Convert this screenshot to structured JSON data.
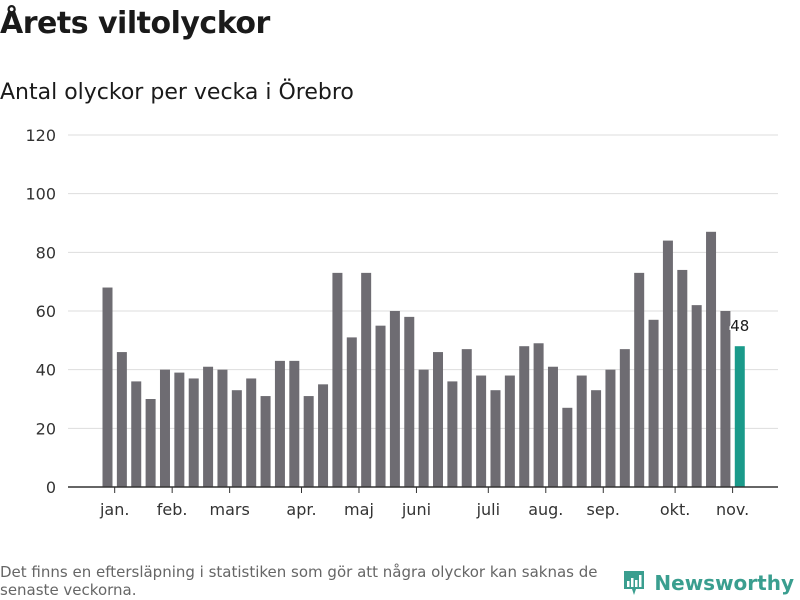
{
  "header": {
    "title": "Årets viltolyckor",
    "subtitle": "Antal olyckor per vecka i Örebro"
  },
  "footer": {
    "note": "Det finns en eftersläpning i statistiken som gör att några olyckor kan saknas de senaste veckorna.",
    "brand": "Newsworthy",
    "brand_icon": "newsworthy-logo-icon"
  },
  "colors": {
    "bar": "#6e6c72",
    "highlight": "#1a9a8a",
    "grid": "#dddddd",
    "axis": "#333333",
    "brand": "#3a9e8f"
  },
  "chart_data": {
    "type": "bar",
    "title": "Årets viltolyckor",
    "subtitle": "Antal olyckor per vecka i Örebro",
    "xlabel": "",
    "ylabel": "",
    "ylim": [
      0,
      120
    ],
    "yticks": [
      0,
      20,
      40,
      60,
      80,
      100,
      120
    ],
    "grid": true,
    "legend": "none",
    "x": [
      1,
      2,
      3,
      4,
      5,
      6,
      7,
      8,
      9,
      10,
      11,
      12,
      13,
      14,
      15,
      16,
      17,
      18,
      19,
      20,
      21,
      22,
      23,
      24,
      25,
      26,
      27,
      28,
      29,
      30,
      31,
      32,
      33,
      34,
      35,
      36,
      37,
      38,
      39,
      40,
      41,
      42,
      43,
      44
    ],
    "values": [
      68,
      46,
      36,
      30,
      40,
      39,
      37,
      41,
      40,
      33,
      37,
      31,
      43,
      43,
      31,
      35,
      73,
      51,
      73,
      55,
      60,
      58,
      40,
      46,
      36,
      47,
      38,
      33,
      38,
      48,
      49,
      41,
      27,
      38,
      33,
      40,
      47,
      73,
      57,
      84,
      74,
      62,
      87,
      60
    ],
    "highlight": {
      "x": 45,
      "value": 48,
      "label": "48"
    },
    "month_labels": [
      {
        "label": "jan.",
        "week": 1.5
      },
      {
        "label": "feb.",
        "week": 5.5
      },
      {
        "label": "mars",
        "week": 9.5
      },
      {
        "label": "apr.",
        "week": 14.5
      },
      {
        "label": "maj",
        "week": 18.5
      },
      {
        "label": "juni",
        "week": 22.5
      },
      {
        "label": "juli",
        "week": 27.5
      },
      {
        "label": "aug.",
        "week": 31.5
      },
      {
        "label": "sep.",
        "week": 35.5
      },
      {
        "label": "okt.",
        "week": 40.5
      },
      {
        "label": "nov.",
        "week": 44.5
      }
    ]
  }
}
